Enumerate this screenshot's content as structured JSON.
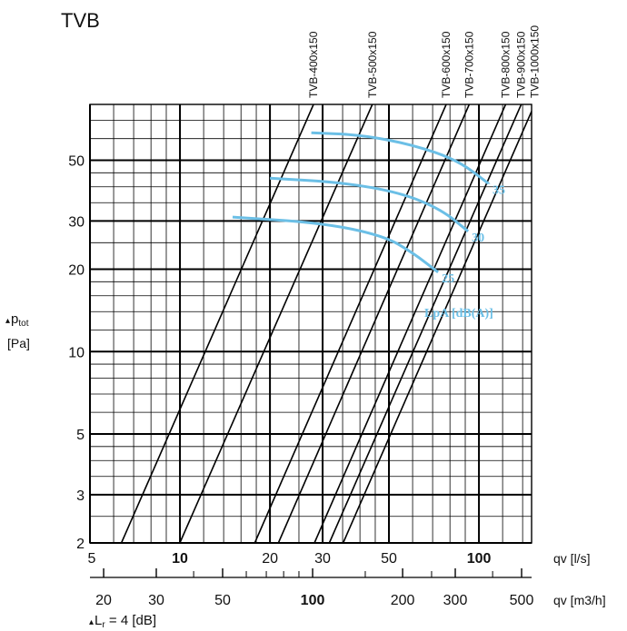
{
  "chart_data": {
    "type": "line",
    "title": "TVB",
    "ylabel_sym": "▴",
    "ylabel_main": "p",
    "ylabel_sub": "tot",
    "ylabel_unit": "[Pa]",
    "xlabel": "qv [l/s]",
    "xlabel2": "qv [m3/h]",
    "footer_sym": "▴",
    "footer_main": "L",
    "footer_sub": "r",
    "footer_rest": " = 4 [dB]",
    "x_scale": "log",
    "y_scale": "log",
    "xlim": [
      5,
      150
    ],
    "ylim": [
      2,
      80
    ],
    "grid": true,
    "x_ticks": [
      "5",
      "10",
      "20",
      "30",
      "50",
      "100"
    ],
    "y_ticks": [
      "2",
      "3",
      "5",
      "10",
      "20",
      "30",
      "50"
    ],
    "m3h_ticks": [
      "20",
      "30",
      "50",
      "100",
      "200",
      "300",
      "500"
    ],
    "series": [
      {
        "name": "TVB-400x150",
        "points": [
          [
            6.37,
            2
          ],
          [
            27.97,
            80
          ]
        ]
      },
      {
        "name": "TVB-500x150",
        "points": [
          [
            9.99,
            2
          ],
          [
            44.0,
            80
          ]
        ]
      },
      {
        "name": "TVB-600x150",
        "points": [
          [
            17.79,
            2
          ],
          [
            77.71,
            80
          ]
        ]
      },
      {
        "name": "TVB-700x150",
        "points": [
          [
            21.34,
            2
          ],
          [
            92.78,
            80
          ]
        ]
      },
      {
        "name": "TVB-800x150",
        "points": [
          [
            28.17,
            2
          ],
          [
            122.8,
            80
          ]
        ]
      },
      {
        "name": "TVB-900x150",
        "points": [
          [
            31.59,
            2
          ],
          [
            138.48,
            80
          ]
        ]
      },
      {
        "name": "TVB-1000x150",
        "points": [
          [
            35.14,
            2
          ],
          [
            153.52,
            80
          ]
        ]
      }
    ],
    "lpa_title": "LpA [dB(A)]",
    "lpa_color": "#6bbfe6",
    "lpa_curves": [
      {
        "label": "35",
        "points": [
          [
            27.5,
            63
          ],
          [
            40,
            62
          ],
          [
            60,
            57
          ],
          [
            85,
            50
          ],
          [
            108,
            41
          ]
        ]
      },
      {
        "label": "30",
        "points": [
          [
            20,
            43
          ],
          [
            35,
            41.5
          ],
          [
            55,
            38
          ],
          [
            75,
            33
          ],
          [
            92,
            27.5
          ]
        ]
      },
      {
        "label": "25",
        "points": [
          [
            15,
            31
          ],
          [
            30,
            29.5
          ],
          [
            48,
            26.5
          ],
          [
            60,
            23
          ],
          [
            73,
            19.5
          ]
        ]
      }
    ]
  }
}
